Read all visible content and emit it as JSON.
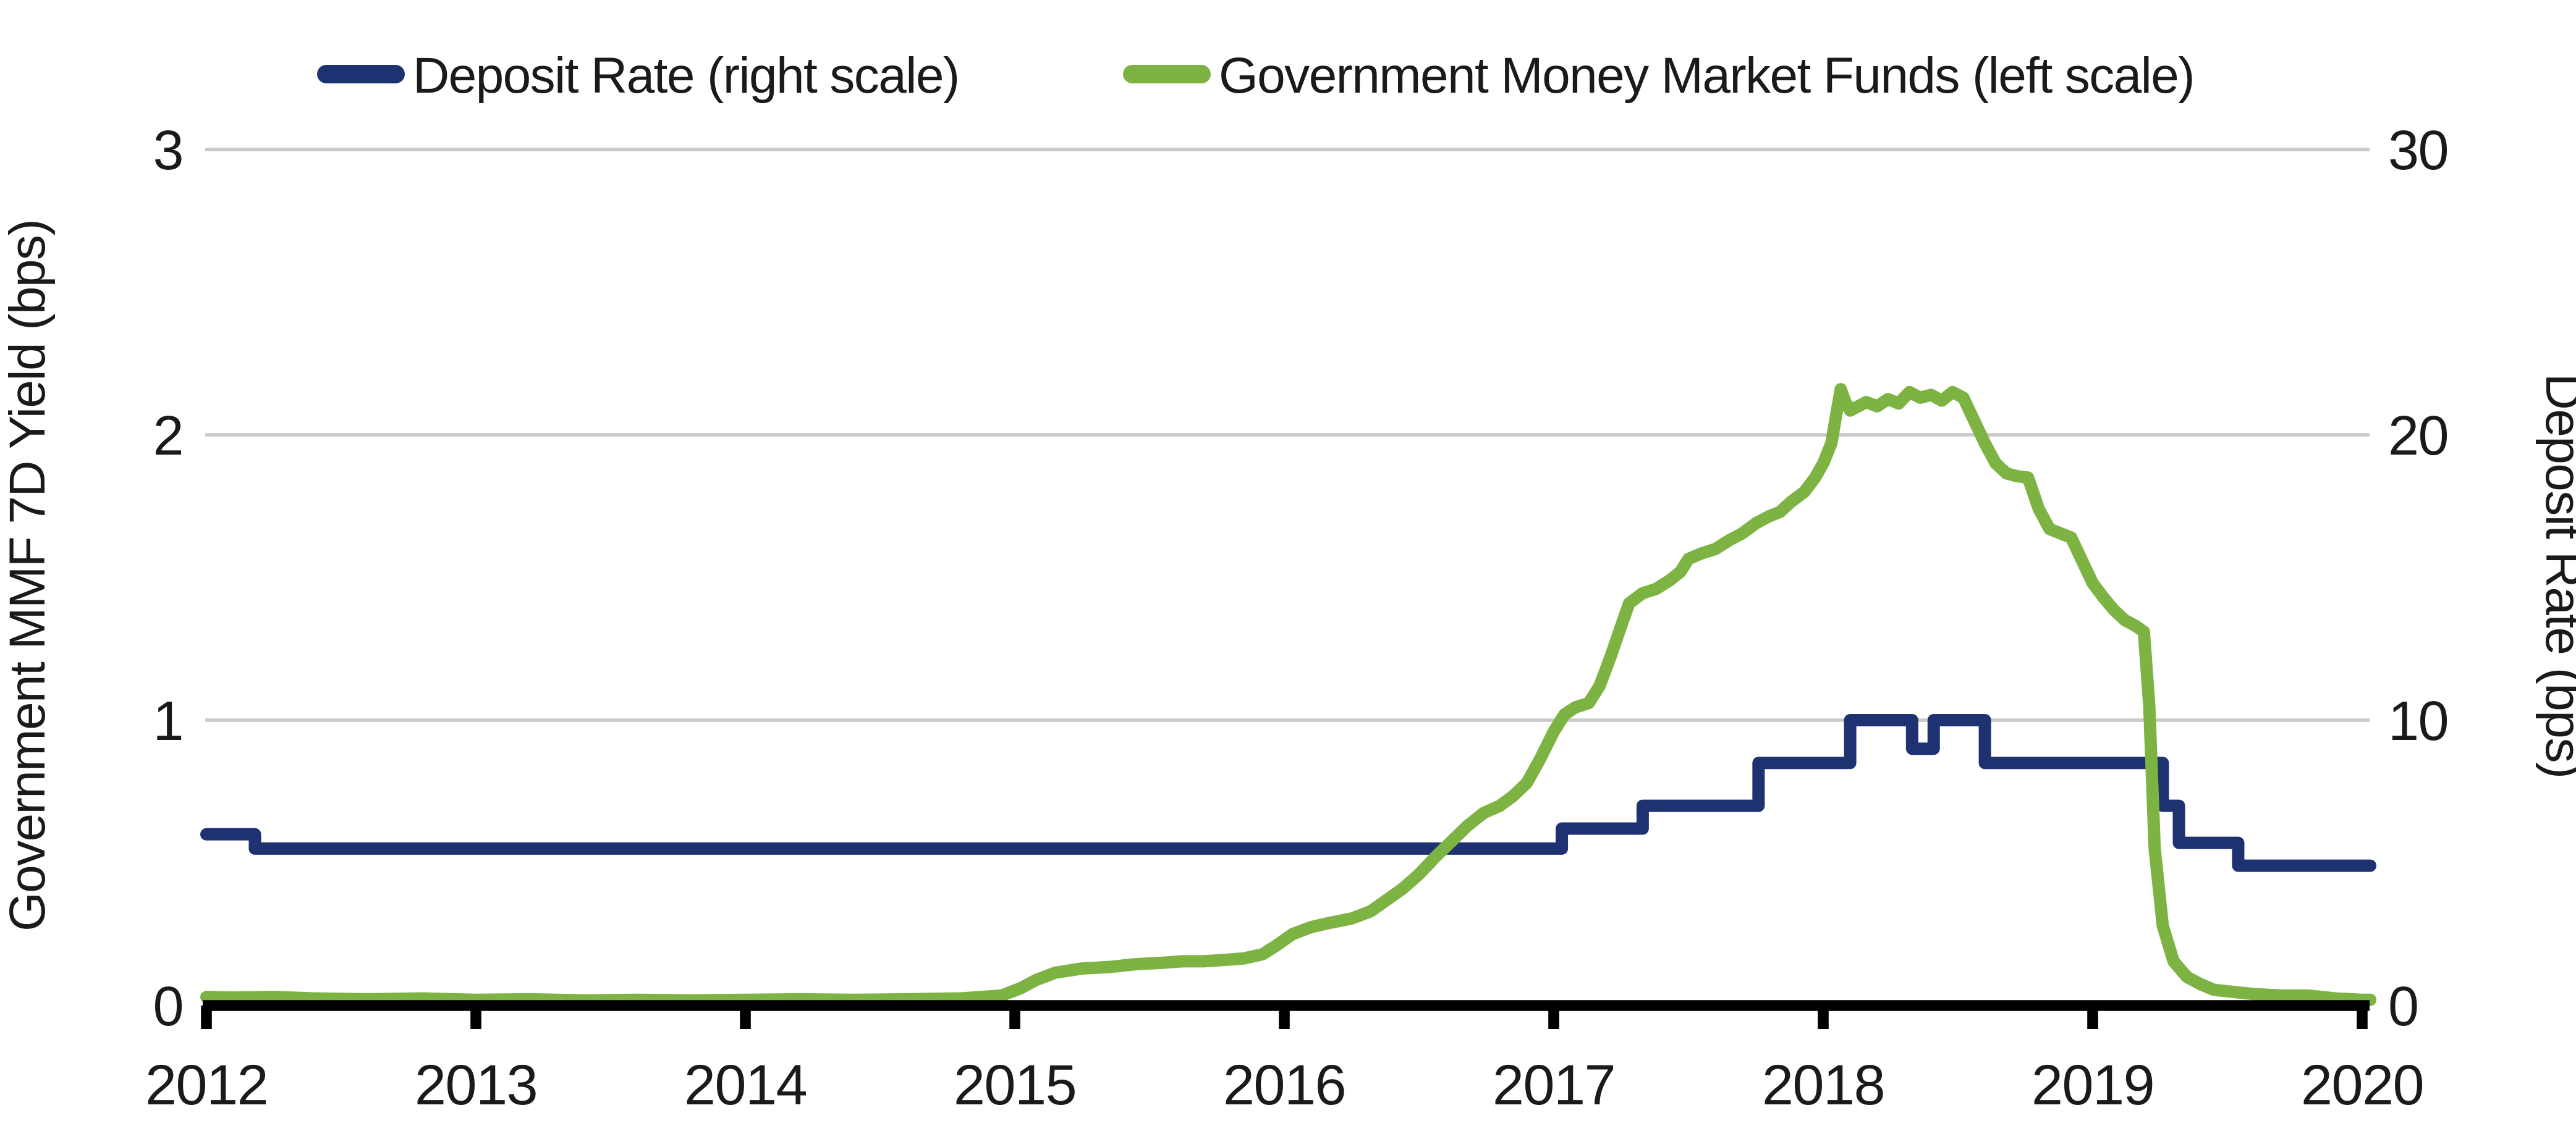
{
  "colors": {
    "background": "#ffffff",
    "gridline": "#c9c9c9",
    "axis_line": "#000000",
    "text": "#1a1a1a",
    "deposit_rate_navy": "#1e3170",
    "mmf_green": "#7cb342"
  },
  "chart_data": {
    "type": "line",
    "title": "",
    "grid": "horizontal-only",
    "legend_position": "top",
    "x_axis": {
      "label": "",
      "ticks": [
        2012,
        2013,
        2014,
        2015,
        2016,
        2017,
        2018,
        2019,
        2020
      ],
      "range": [
        2012,
        2020.05
      ]
    },
    "left_axis": {
      "label": "Government MMF 7D Yield (bps)",
      "ticks": [
        3,
        2,
        1,
        0
      ],
      "range": [
        0,
        3
      ]
    },
    "right_axis": {
      "label": "Deposit Rate (bps)",
      "ticks": [
        30,
        20,
        10,
        0
      ],
      "range": [
        0,
        30
      ]
    },
    "series": [
      {
        "name": "Deposit Rate (right scale)",
        "id": "deposit-rate",
        "axis": "right",
        "color": "#1e3170",
        "stroke_width": 5,
        "points": [
          [
            2012.0,
            6.0
          ],
          [
            2012.18,
            6.0
          ],
          [
            2012.18,
            5.5
          ],
          [
            2017.03,
            5.5
          ],
          [
            2017.03,
            6.2
          ],
          [
            2017.33,
            6.2
          ],
          [
            2017.33,
            7.0
          ],
          [
            2017.76,
            7.0
          ],
          [
            2017.76,
            8.5
          ],
          [
            2018.1,
            8.5
          ],
          [
            2018.1,
            10.0
          ],
          [
            2018.33,
            10.0
          ],
          [
            2018.33,
            9.0
          ],
          [
            2018.41,
            9.0
          ],
          [
            2018.41,
            10.0
          ],
          [
            2018.6,
            10.0
          ],
          [
            2018.6,
            8.5
          ],
          [
            2019.26,
            8.5
          ],
          [
            2019.26,
            7.0
          ],
          [
            2019.32,
            7.0
          ],
          [
            2019.32,
            5.7
          ],
          [
            2019.54,
            5.7
          ],
          [
            2019.54,
            4.9
          ],
          [
            2020.03,
            4.9
          ]
        ]
      },
      {
        "name": "Government Money Market Funds (left scale)",
        "id": "government-mmf",
        "axis": "left",
        "color": "#7cb342",
        "stroke_width": 5,
        "points": [
          [
            2012.0,
            0.03
          ],
          [
            2012.1,
            0.028
          ],
          [
            2012.25,
            0.03
          ],
          [
            2012.4,
            0.025
          ],
          [
            2012.6,
            0.022
          ],
          [
            2012.8,
            0.025
          ],
          [
            2013.0,
            0.02
          ],
          [
            2013.2,
            0.022
          ],
          [
            2013.4,
            0.018
          ],
          [
            2013.6,
            0.02
          ],
          [
            2013.8,
            0.018
          ],
          [
            2014.0,
            0.02
          ],
          [
            2014.2,
            0.022
          ],
          [
            2014.4,
            0.02
          ],
          [
            2014.6,
            0.022
          ],
          [
            2014.8,
            0.025
          ],
          [
            2014.95,
            0.035
          ],
          [
            2015.02,
            0.06
          ],
          [
            2015.08,
            0.09
          ],
          [
            2015.15,
            0.115
          ],
          [
            2015.25,
            0.13
          ],
          [
            2015.35,
            0.135
          ],
          [
            2015.45,
            0.145
          ],
          [
            2015.55,
            0.15
          ],
          [
            2015.62,
            0.155
          ],
          [
            2015.7,
            0.155
          ],
          [
            2015.78,
            0.16
          ],
          [
            2015.85,
            0.165
          ],
          [
            2015.92,
            0.18
          ],
          [
            2015.97,
            0.21
          ],
          [
            2016.03,
            0.25
          ],
          [
            2016.1,
            0.275
          ],
          [
            2016.17,
            0.29
          ],
          [
            2016.25,
            0.305
          ],
          [
            2016.32,
            0.33
          ],
          [
            2016.38,
            0.37
          ],
          [
            2016.44,
            0.41
          ],
          [
            2016.5,
            0.46
          ],
          [
            2016.56,
            0.52
          ],
          [
            2016.62,
            0.575
          ],
          [
            2016.68,
            0.63
          ],
          [
            2016.74,
            0.675
          ],
          [
            2016.8,
            0.7
          ],
          [
            2016.85,
            0.735
          ],
          [
            2016.9,
            0.78
          ],
          [
            2016.95,
            0.865
          ],
          [
            2017.0,
            0.96
          ],
          [
            2017.04,
            1.02
          ],
          [
            2017.08,
            1.045
          ],
          [
            2017.13,
            1.06
          ],
          [
            2017.17,
            1.12
          ],
          [
            2017.21,
            1.22
          ],
          [
            2017.25,
            1.33
          ],
          [
            2017.28,
            1.41
          ],
          [
            2017.33,
            1.445
          ],
          [
            2017.38,
            1.46
          ],
          [
            2017.43,
            1.49
          ],
          [
            2017.47,
            1.52
          ],
          [
            2017.5,
            1.565
          ],
          [
            2017.55,
            1.585
          ],
          [
            2017.6,
            1.6
          ],
          [
            2017.65,
            1.63
          ],
          [
            2017.7,
            1.655
          ],
          [
            2017.75,
            1.69
          ],
          [
            2017.8,
            1.715
          ],
          [
            2017.84,
            1.73
          ],
          [
            2017.88,
            1.765
          ],
          [
            2017.93,
            1.8
          ],
          [
            2017.97,
            1.85
          ],
          [
            2018.0,
            1.9
          ],
          [
            2018.03,
            1.97
          ],
          [
            2018.05,
            2.08
          ],
          [
            2018.065,
            2.16
          ],
          [
            2018.08,
            2.12
          ],
          [
            2018.1,
            2.085
          ],
          [
            2018.13,
            2.1
          ],
          [
            2018.16,
            2.115
          ],
          [
            2018.2,
            2.1
          ],
          [
            2018.24,
            2.125
          ],
          [
            2018.28,
            2.11
          ],
          [
            2018.32,
            2.15
          ],
          [
            2018.36,
            2.13
          ],
          [
            2018.4,
            2.14
          ],
          [
            2018.44,
            2.12
          ],
          [
            2018.48,
            2.15
          ],
          [
            2018.52,
            2.13
          ],
          [
            2018.55,
            2.07
          ],
          [
            2018.6,
            1.97
          ],
          [
            2018.64,
            1.9
          ],
          [
            2018.68,
            1.865
          ],
          [
            2018.72,
            1.855
          ],
          [
            2018.76,
            1.85
          ],
          [
            2018.8,
            1.74
          ],
          [
            2018.84,
            1.67
          ],
          [
            2018.88,
            1.655
          ],
          [
            2018.92,
            1.64
          ],
          [
            2018.96,
            1.56
          ],
          [
            2019.0,
            1.48
          ],
          [
            2019.04,
            1.43
          ],
          [
            2019.08,
            1.385
          ],
          [
            2019.12,
            1.35
          ],
          [
            2019.16,
            1.33
          ],
          [
            2019.19,
            1.31
          ],
          [
            2019.21,
            1.05
          ],
          [
            2019.23,
            0.55
          ],
          [
            2019.26,
            0.28
          ],
          [
            2019.3,
            0.155
          ],
          [
            2019.35,
            0.1
          ],
          [
            2019.4,
            0.075
          ],
          [
            2019.45,
            0.055
          ],
          [
            2019.5,
            0.05
          ],
          [
            2019.6,
            0.04
          ],
          [
            2019.7,
            0.035
          ],
          [
            2019.8,
            0.035
          ],
          [
            2019.9,
            0.025
          ],
          [
            2020.0,
            0.02
          ],
          [
            2020.03,
            0.02
          ]
        ]
      }
    ]
  }
}
